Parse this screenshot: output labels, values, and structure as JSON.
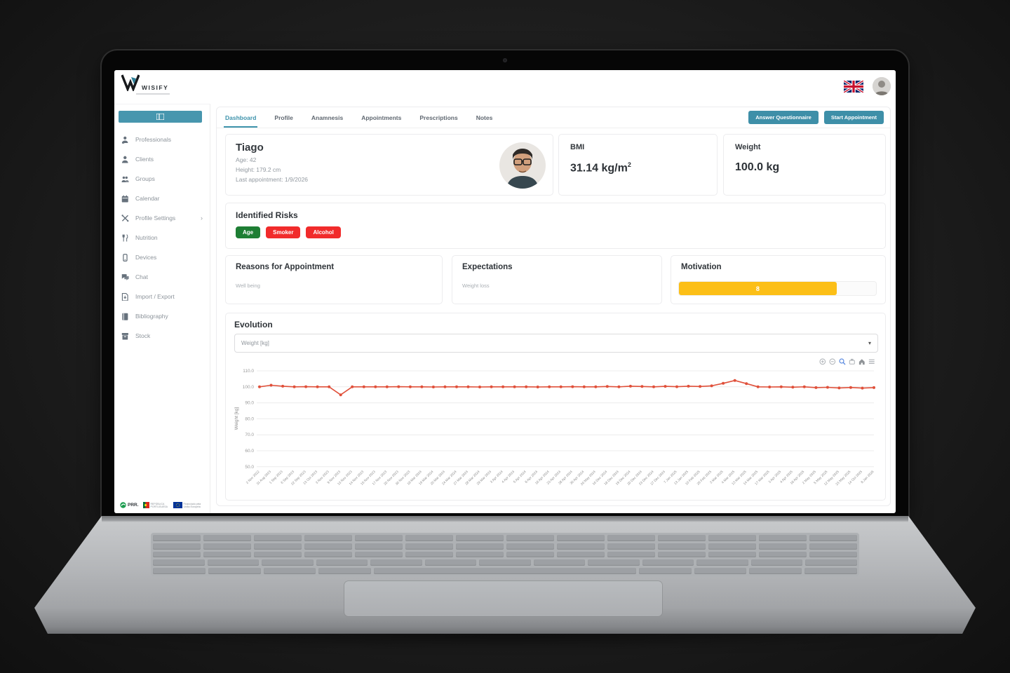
{
  "brand": {
    "name": "WISIFY"
  },
  "header": {
    "language_flag": "uk-flag-icon",
    "user_avatar": "user-avatar"
  },
  "sidebar": {
    "toggle_icon": "sidebar-toggle-icon",
    "items": [
      {
        "label": "Professionals",
        "icon": "professionals-icon"
      },
      {
        "label": "Clients",
        "icon": "clients-icon"
      },
      {
        "label": "Groups",
        "icon": "groups-icon"
      },
      {
        "label": "Calendar",
        "icon": "calendar-icon"
      },
      {
        "label": "Profile Settings",
        "icon": "settings-icon",
        "has_submenu": true
      },
      {
        "label": "Nutrition",
        "icon": "nutrition-icon"
      },
      {
        "label": "Devices",
        "icon": "devices-icon"
      },
      {
        "label": "Chat",
        "icon": "chat-icon"
      },
      {
        "label": "Import / Export",
        "icon": "import-export-icon"
      },
      {
        "label": "Bibliography",
        "icon": "bibliography-icon"
      },
      {
        "label": "Stock",
        "icon": "stock-icon"
      }
    ],
    "footer_logos": {
      "prr": "PRR.",
      "republica": "REPÚBLICA PORTUGUESA",
      "eu": "Financiado pela União Europeia"
    }
  },
  "tabs": {
    "items": [
      {
        "label": "Dashboard",
        "active": true
      },
      {
        "label": "Profile",
        "active": false
      },
      {
        "label": "Anamnesis",
        "active": false
      },
      {
        "label": "Appointments",
        "active": false
      },
      {
        "label": "Prescriptions",
        "active": false
      },
      {
        "label": "Notes",
        "active": false
      }
    ]
  },
  "actions": {
    "answer_questionnaire": "Answer Questionnaire",
    "start_appointment": "Start Appointment"
  },
  "patient": {
    "name": "Tiago",
    "age": "Age: 42",
    "height": "Height: 179.2 cm",
    "last_appointment": "Last appointment: 1/9/2026"
  },
  "metrics": {
    "bmi": {
      "label": "BMI",
      "value": "31.14",
      "unit": " kg/m",
      "sup": "2"
    },
    "weight": {
      "label": "Weight",
      "value": "100.0 kg"
    }
  },
  "risks": {
    "title": "Identified Risks",
    "badges": [
      {
        "label": "Age",
        "color": "#1e7e34"
      },
      {
        "label": "Smoker",
        "color": "#f12b2b"
      },
      {
        "label": "Alcohol",
        "color": "#f12b2b"
      }
    ]
  },
  "reasons": {
    "title": "Reasons for Appointment",
    "value": "Well being"
  },
  "expectations": {
    "title": "Expectations",
    "value": "Weight loss"
  },
  "motivation": {
    "title": "Motivation",
    "value": 8,
    "max": 10,
    "bar_color": "#fcbf17"
  },
  "evolution": {
    "title": "Evolution",
    "metric_select": "Weight [kg]",
    "modebar": [
      "zoom-in-icon",
      "zoom-out-icon",
      "zoom-search-icon",
      "pan-icon",
      "home-icon",
      "menu-icon"
    ]
  },
  "chart_data": {
    "type": "line",
    "title": "",
    "xlabel": "",
    "ylabel": "Weight [kg]",
    "ylim": [
      50,
      115
    ],
    "yticks": [
      110,
      100,
      90,
      80,
      70,
      60,
      50
    ],
    "grid": true,
    "legend": false,
    "line_color": "#e0503a",
    "x": [
      "2 Nov 2022",
      "31 Aug 2023",
      "1 Sep 2023",
      "6 Sep 2023",
      "22 Sep 2023",
      "13 Oct 2023",
      "3 Nov 2023",
      "9 Nov 2023",
      "13 Nov 2023",
      "14 Nov 2023",
      "15 Nov 2023",
      "17 Nov 2023",
      "20 Nov 2023",
      "30 Nov 2023",
      "18 Mar 2024",
      "19 Mar 2024",
      "20 Mar 2024",
      "24 Mar 2024",
      "27 Mar 2024",
      "28 Mar 2024",
      "29 Mar 2024",
      "3 Apr 2024",
      "4 Apr 2024",
      "5 Apr 2024",
      "8 Apr 2024",
      "16 Apr 2024",
      "23 Apr 2024",
      "28 Apr 2024",
      "30 Apr 2024",
      "20 May 2024",
      "16 Dec 2024",
      "18 Dec 2024",
      "19 Dec 2024",
      "20 Dec 2024",
      "23 Dec 2024",
      "27 Dec 2024",
      "7 Jan 2025",
      "13 Jan 2025",
      "10 Feb 2025",
      "26 Feb 2025",
      "3 Mar 2025",
      "4 Mar 2025",
      "13 Mar 2025",
      "14 Mar 2025",
      "17 Mar 2025",
      "3 Apr 2025",
      "4 Apr 2025",
      "18 Apr 2025",
      "2 May 2025",
      "5 May 2025",
      "12 May 2025",
      "23 May 2025",
      "14 Oct 2025",
      "8 Jan 2026"
    ],
    "series": [
      {
        "name": "Weight [kg]",
        "values": [
          100,
          101,
          100.4,
          100,
          100.1,
          100,
          100,
          95,
          100,
          100,
          100,
          100,
          100.1,
          100,
          100,
          99.9,
          100,
          100,
          100,
          99.9,
          100,
          100,
          100,
          100,
          99.9,
          100,
          100,
          100.1,
          100,
          100,
          100.2,
          100,
          100.4,
          100.2,
          100,
          100.3,
          100.1,
          100.4,
          100.2,
          100.6,
          102.2,
          104,
          102,
          100,
          99.9,
          100,
          99.8,
          100,
          99.5,
          99.7,
          99.3,
          99.6,
          99.2,
          99.5
        ]
      }
    ]
  }
}
